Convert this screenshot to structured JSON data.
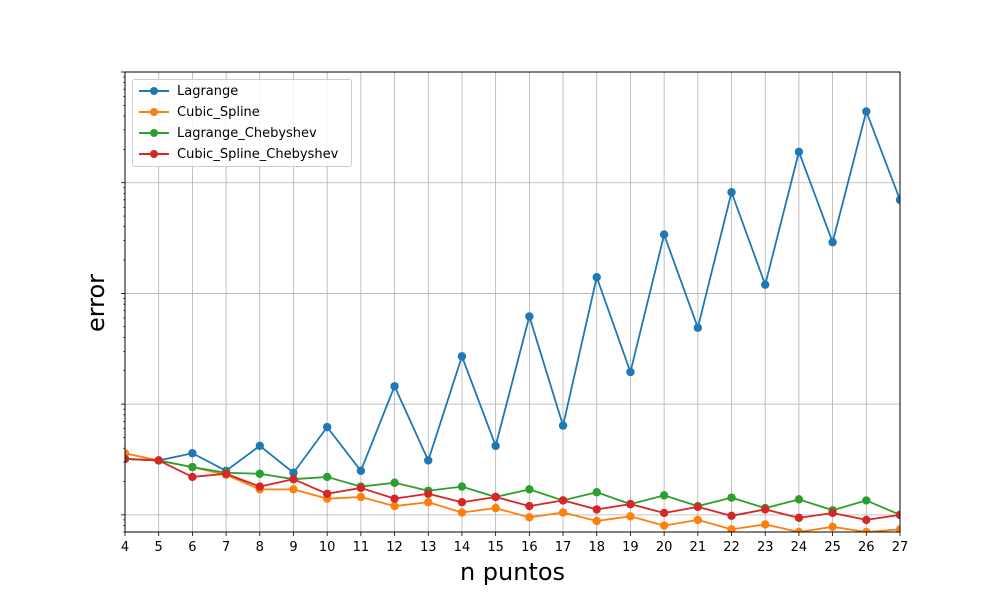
{
  "chart_data": {
    "type": "line",
    "xlabel": "n puntos",
    "ylabel": "error",
    "x": [
      4,
      5,
      6,
      7,
      8,
      9,
      10,
      11,
      12,
      13,
      14,
      15,
      16,
      17,
      18,
      19,
      20,
      21,
      22,
      23,
      24,
      25,
      26,
      27
    ],
    "xticks": [
      "4",
      "5",
      "6",
      "7",
      "8",
      "9",
      "10",
      "11",
      "12",
      "13",
      "14",
      "15",
      "16",
      "17",
      "18",
      "19",
      "20",
      "21",
      "22",
      "23",
      "24",
      "25",
      "26",
      "27"
    ],
    "xlim": [
      4,
      27
    ],
    "yscale": "log",
    "ylim": [
      0.07,
      1000
    ],
    "grid": true,
    "legend_position": "upper-left",
    "series": [
      {
        "name": "Lagrange",
        "color": "#1f77b4",
        "values": [
          0.32,
          0.31,
          0.36,
          0.25,
          0.42,
          0.24,
          0.62,
          0.25,
          1.45,
          0.31,
          2.7,
          0.42,
          6.2,
          0.64,
          14,
          1.95,
          34,
          4.9,
          82,
          12,
          190,
          29,
          440,
          70
        ]
      },
      {
        "name": "Cubic_Spline",
        "color": "#ff7f0e",
        "values": [
          0.36,
          0.31,
          0.27,
          0.23,
          0.17,
          0.17,
          0.14,
          0.145,
          0.12,
          0.13,
          0.105,
          0.115,
          0.095,
          0.105,
          0.088,
          0.097,
          0.08,
          0.09,
          0.074,
          0.082,
          0.068,
          0.078,
          0.064,
          0.074
        ]
      },
      {
        "name": "Lagrange_Chebyshev",
        "color": "#2ca02c",
        "values": [
          0.32,
          0.31,
          0.27,
          0.24,
          0.235,
          0.21,
          0.22,
          0.18,
          0.195,
          0.165,
          0.18,
          0.145,
          0.17,
          0.135,
          0.16,
          0.125,
          0.15,
          0.12,
          0.143,
          0.115,
          0.138,
          0.11,
          0.135,
          0.1
        ]
      },
      {
        "name": "Cubic_Spline_Chebyshev",
        "color": "#d62728",
        "values": [
          0.32,
          0.31,
          0.22,
          0.235,
          0.18,
          0.21,
          0.155,
          0.175,
          0.14,
          0.155,
          0.13,
          0.145,
          0.12,
          0.135,
          0.112,
          0.125,
          0.104,
          0.118,
          0.098,
          0.112,
          0.094,
          0.104,
          0.09,
          0.1
        ]
      }
    ]
  }
}
